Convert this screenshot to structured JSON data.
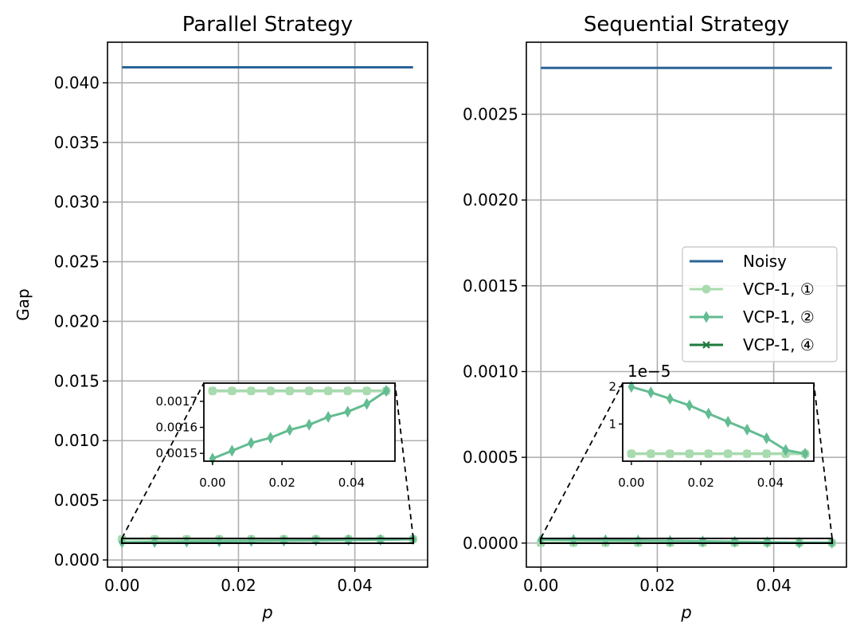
{
  "colors": {
    "noisy": "#2a6496",
    "vcp1_c1": "#a8dcae",
    "vcp1_c2": "#63bc92",
    "vcp1_c4": "#1e7a3c",
    "grid": "#b0b0b0"
  },
  "legend": {
    "placement": "center-right",
    "entries": [
      "Noisy",
      "VCP-1, ①",
      "VCP-1, ②",
      "VCP-1, ④"
    ]
  },
  "chart_data": [
    {
      "type": "line",
      "title": "Parallel Strategy",
      "xlabel": "p",
      "ylabel": "Gap",
      "xlim": [
        -0.0025,
        0.0525
      ],
      "ylim": [
        -0.0006,
        0.0434
      ],
      "xticks": [
        0.0,
        0.02,
        0.04
      ],
      "xtick_labels": [
        "0.00",
        "0.02",
        "0.04"
      ],
      "yticks": [
        0.0,
        0.005,
        0.01,
        0.015,
        0.02,
        0.025,
        0.03,
        0.035,
        0.04
      ],
      "ytick_labels": [
        "0.000",
        "0.005",
        "0.010",
        "0.015",
        "0.020",
        "0.025",
        "0.030",
        "0.035",
        "0.040"
      ],
      "grid": true,
      "series": [
        {
          "name": "Noisy",
          "marker": "none",
          "x": [
            0.0,
            0.05
          ],
          "values": [
            0.0413,
            0.0413
          ]
        },
        {
          "name": "VCP-1, ①",
          "marker": "circle",
          "x": [
            0.0,
            0.0056,
            0.0111,
            0.0167,
            0.0222,
            0.0278,
            0.0333,
            0.0389,
            0.0444,
            0.05
          ],
          "values": [
            0.00174,
            0.00174,
            0.00174,
            0.00174,
            0.00174,
            0.00174,
            0.00174,
            0.00174,
            0.00174,
            0.00174
          ]
        },
        {
          "name": "VCP-1, ②",
          "marker": "diamond",
          "x": [
            0.0,
            0.0056,
            0.0111,
            0.0167,
            0.0222,
            0.0278,
            0.0333,
            0.0389,
            0.0444,
            0.05
          ],
          "values": [
            0.00148,
            0.00151,
            0.00154,
            0.00156,
            0.00159,
            0.00161,
            0.00164,
            0.00166,
            0.00169,
            0.00174
          ]
        },
        {
          "name": "VCP-1, ④",
          "marker": "x",
          "x": [
            0.0,
            0.0056,
            0.0111,
            0.0167,
            0.0222,
            0.0278,
            0.0333,
            0.0389,
            0.0444,
            0.05
          ],
          "values": [
            0.00174,
            0.00174,
            0.00174,
            0.00174,
            0.00174,
            0.00174,
            0.00174,
            0.00174,
            0.00174,
            0.00174
          ]
        }
      ],
      "inset": {
        "xlim": [
          -0.0025,
          0.0525
        ],
        "ylim": [
          0.00147,
          0.00177
        ],
        "xticks": [
          0.0,
          0.02,
          0.04
        ],
        "xtick_labels": [
          "0.00",
          "0.02",
          "0.04"
        ],
        "yticks": [
          0.0015,
          0.0016,
          0.0017
        ],
        "ytick_labels": [
          "0.0015",
          "0.0016",
          "0.0017"
        ],
        "offset_text": ""
      }
    },
    {
      "type": "line",
      "title": "Sequential Strategy",
      "xlabel": "p",
      "ylabel": "",
      "xlim": [
        -0.0025,
        0.0525
      ],
      "ylim": [
        -0.00014,
        0.00292
      ],
      "xticks": [
        0.0,
        0.02,
        0.04
      ],
      "xtick_labels": [
        "0.00",
        "0.02",
        "0.04"
      ],
      "yticks": [
        0.0,
        0.0005,
        0.001,
        0.0015,
        0.002,
        0.0025
      ],
      "ytick_labels": [
        "0.0000",
        "0.0005",
        "0.0010",
        "0.0015",
        "0.0020",
        "0.0025"
      ],
      "grid": true,
      "series": [
        {
          "name": "Noisy",
          "marker": "none",
          "x": [
            0.0,
            0.05
          ],
          "values": [
            0.00277,
            0.00277
          ]
        },
        {
          "name": "VCP-1, ①",
          "marker": "circle",
          "x": [
            0.0,
            0.0056,
            0.0111,
            0.0167,
            0.0222,
            0.0278,
            0.0333,
            0.0389,
            0.0444,
            0.05
          ],
          "values": [
            2e-06,
            2e-06,
            2e-06,
            2e-06,
            2e-06,
            2e-06,
            2e-06,
            2e-06,
            2e-06,
            2e-06
          ]
        },
        {
          "name": "VCP-1, ②",
          "marker": "diamond",
          "x": [
            0.0,
            0.0056,
            0.0111,
            0.0167,
            0.0222,
            0.0278,
            0.0333,
            0.0389,
            0.0444,
            0.05
          ],
          "values": [
            2e-05,
            1.85e-05,
            1.68e-05,
            1.5e-05,
            1.28e-05,
            1.06e-05,
            8.5e-06,
            6.2e-06,
            3e-06,
            2e-06
          ]
        },
        {
          "name": "VCP-1, ④",
          "marker": "x",
          "x": [
            0.0,
            0.0056,
            0.0111,
            0.0167,
            0.0222,
            0.0278,
            0.0333,
            0.0389,
            0.0444,
            0.05
          ],
          "values": [
            2e-06,
            2e-06,
            2e-06,
            2e-06,
            2e-06,
            2e-06,
            2e-06,
            2e-06,
            2e-06,
            2e-06
          ]
        }
      ],
      "inset": {
        "xlim": [
          -0.0025,
          0.0525
        ],
        "ylim": [
          0.0,
          2.1e-05
        ],
        "xticks": [
          0.0,
          0.02,
          0.04
        ],
        "xtick_labels": [
          "0.00",
          "0.02",
          "0.04"
        ],
        "yticks": [
          1e-05,
          2e-05
        ],
        "ytick_labels": [
          "1",
          "2"
        ],
        "offset_text": "1e−5"
      }
    }
  ]
}
